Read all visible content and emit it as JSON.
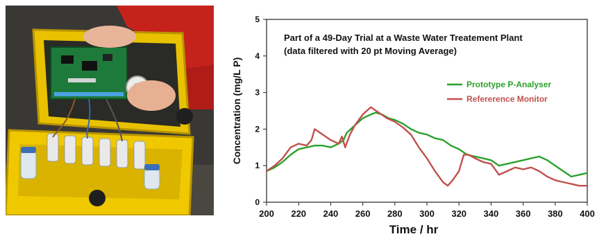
{
  "photo": {
    "subject": "yellow-field-case-with-circuit-board"
  },
  "chart_data": {
    "type": "line",
    "title": "Part of a 49-Day Trial at a Waste Water Treatement Plant",
    "subtitle": "(data filtered with 20 pt Moving Average)",
    "xlabel": "Time / hr",
    "ylabel": "Concentration (mg/L P)",
    "xlim": [
      200,
      400
    ],
    "ylim": [
      0,
      5
    ],
    "xticks": [
      200,
      220,
      240,
      260,
      280,
      300,
      320,
      340,
      360,
      380,
      400
    ],
    "yticks": [
      0,
      1,
      2,
      3,
      4,
      5
    ],
    "grid": false,
    "legend_position": "right",
    "series": [
      {
        "name": "Prototype P-Analyser",
        "color": "#2ca02c",
        "x": [
          200,
          205,
          210,
          215,
          220,
          225,
          230,
          235,
          240,
          245,
          248,
          250,
          255,
          260,
          265,
          268,
          272,
          276,
          280,
          285,
          290,
          295,
          300,
          305,
          310,
          315,
          320,
          325,
          330,
          335,
          340,
          345,
          350,
          355,
          360,
          365,
          370,
          375,
          380,
          385,
          390,
          395,
          400
        ],
        "y": [
          0.85,
          0.95,
          1.1,
          1.3,
          1.45,
          1.5,
          1.55,
          1.55,
          1.5,
          1.6,
          1.7,
          1.9,
          2.1,
          2.3,
          2.4,
          2.45,
          2.4,
          2.3,
          2.25,
          2.15,
          2.0,
          1.9,
          1.85,
          1.75,
          1.7,
          1.55,
          1.45,
          1.3,
          1.25,
          1.2,
          1.15,
          1.0,
          1.05,
          1.1,
          1.15,
          1.2,
          1.25,
          1.15,
          1.0,
          0.85,
          0.7,
          0.75,
          0.8
        ]
      },
      {
        "name": "Refererence Monitor",
        "color": "#c0504d",
        "x": [
          200,
          205,
          210,
          215,
          220,
          225,
          228,
          230,
          235,
          240,
          245,
          247,
          249,
          252,
          255,
          260,
          265,
          270,
          275,
          280,
          285,
          290,
          295,
          300,
          305,
          310,
          313,
          316,
          320,
          323,
          326,
          330,
          335,
          340,
          345,
          350,
          355,
          360,
          365,
          370,
          375,
          380,
          385,
          390,
          395,
          400
        ],
        "y": [
          0.85,
          1.0,
          1.2,
          1.5,
          1.6,
          1.55,
          1.7,
          2.0,
          1.85,
          1.7,
          1.6,
          1.8,
          1.5,
          1.85,
          2.1,
          2.4,
          2.6,
          2.45,
          2.3,
          2.2,
          2.05,
          1.85,
          1.5,
          1.2,
          0.85,
          0.55,
          0.45,
          0.6,
          0.85,
          1.3,
          1.3,
          1.2,
          1.1,
          1.05,
          0.75,
          0.85,
          0.95,
          0.9,
          0.95,
          0.85,
          0.7,
          0.6,
          0.55,
          0.5,
          0.45,
          0.45
        ]
      }
    ]
  }
}
